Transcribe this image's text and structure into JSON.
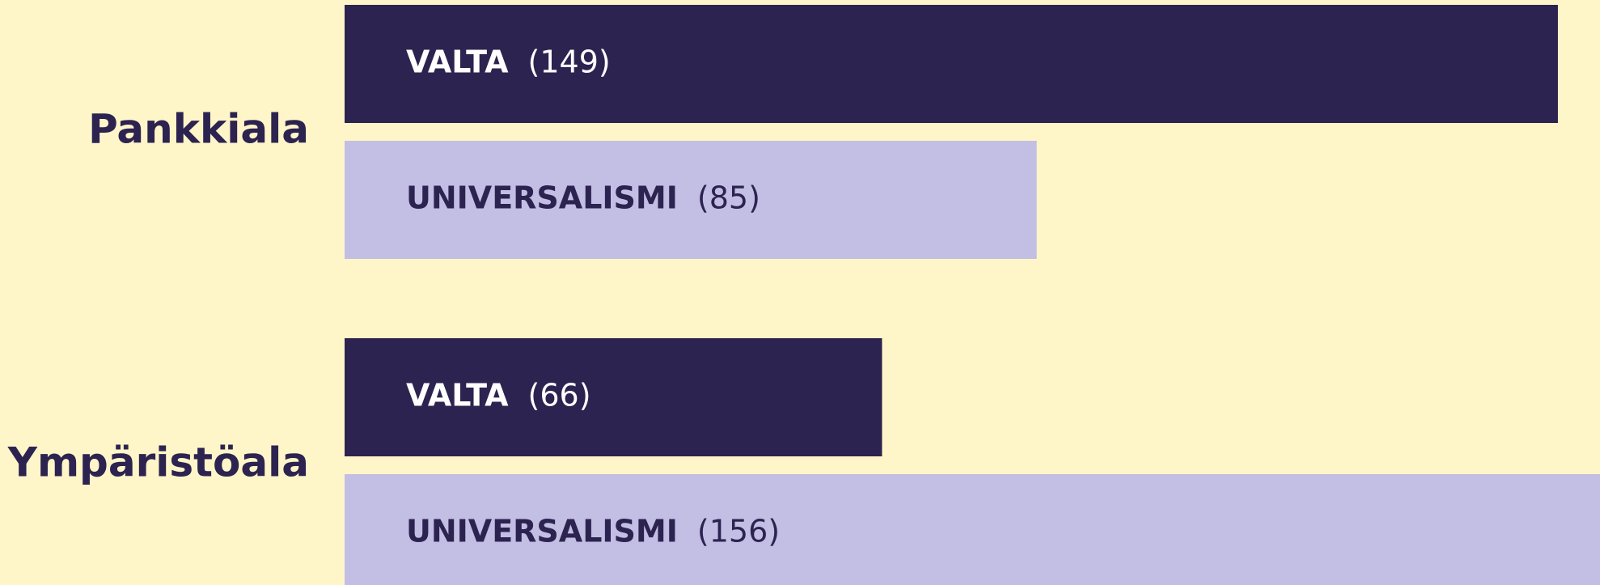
{
  "chart_data": {
    "type": "bar",
    "orientation": "horizontal",
    "categories": [
      "Pankkiala",
      "Ympäristöala"
    ],
    "series": [
      {
        "name": "VALTA",
        "color": "#2c2350",
        "values": [
          149,
          66
        ],
        "value_labels": [
          "(149)",
          "(66)"
        ]
      },
      {
        "name": "UNIVERSALISMI",
        "color": "#c3bee4",
        "values": [
          85,
          156
        ],
        "value_labels": [
          "(85)",
          "(156)"
        ]
      }
    ]
  }
}
